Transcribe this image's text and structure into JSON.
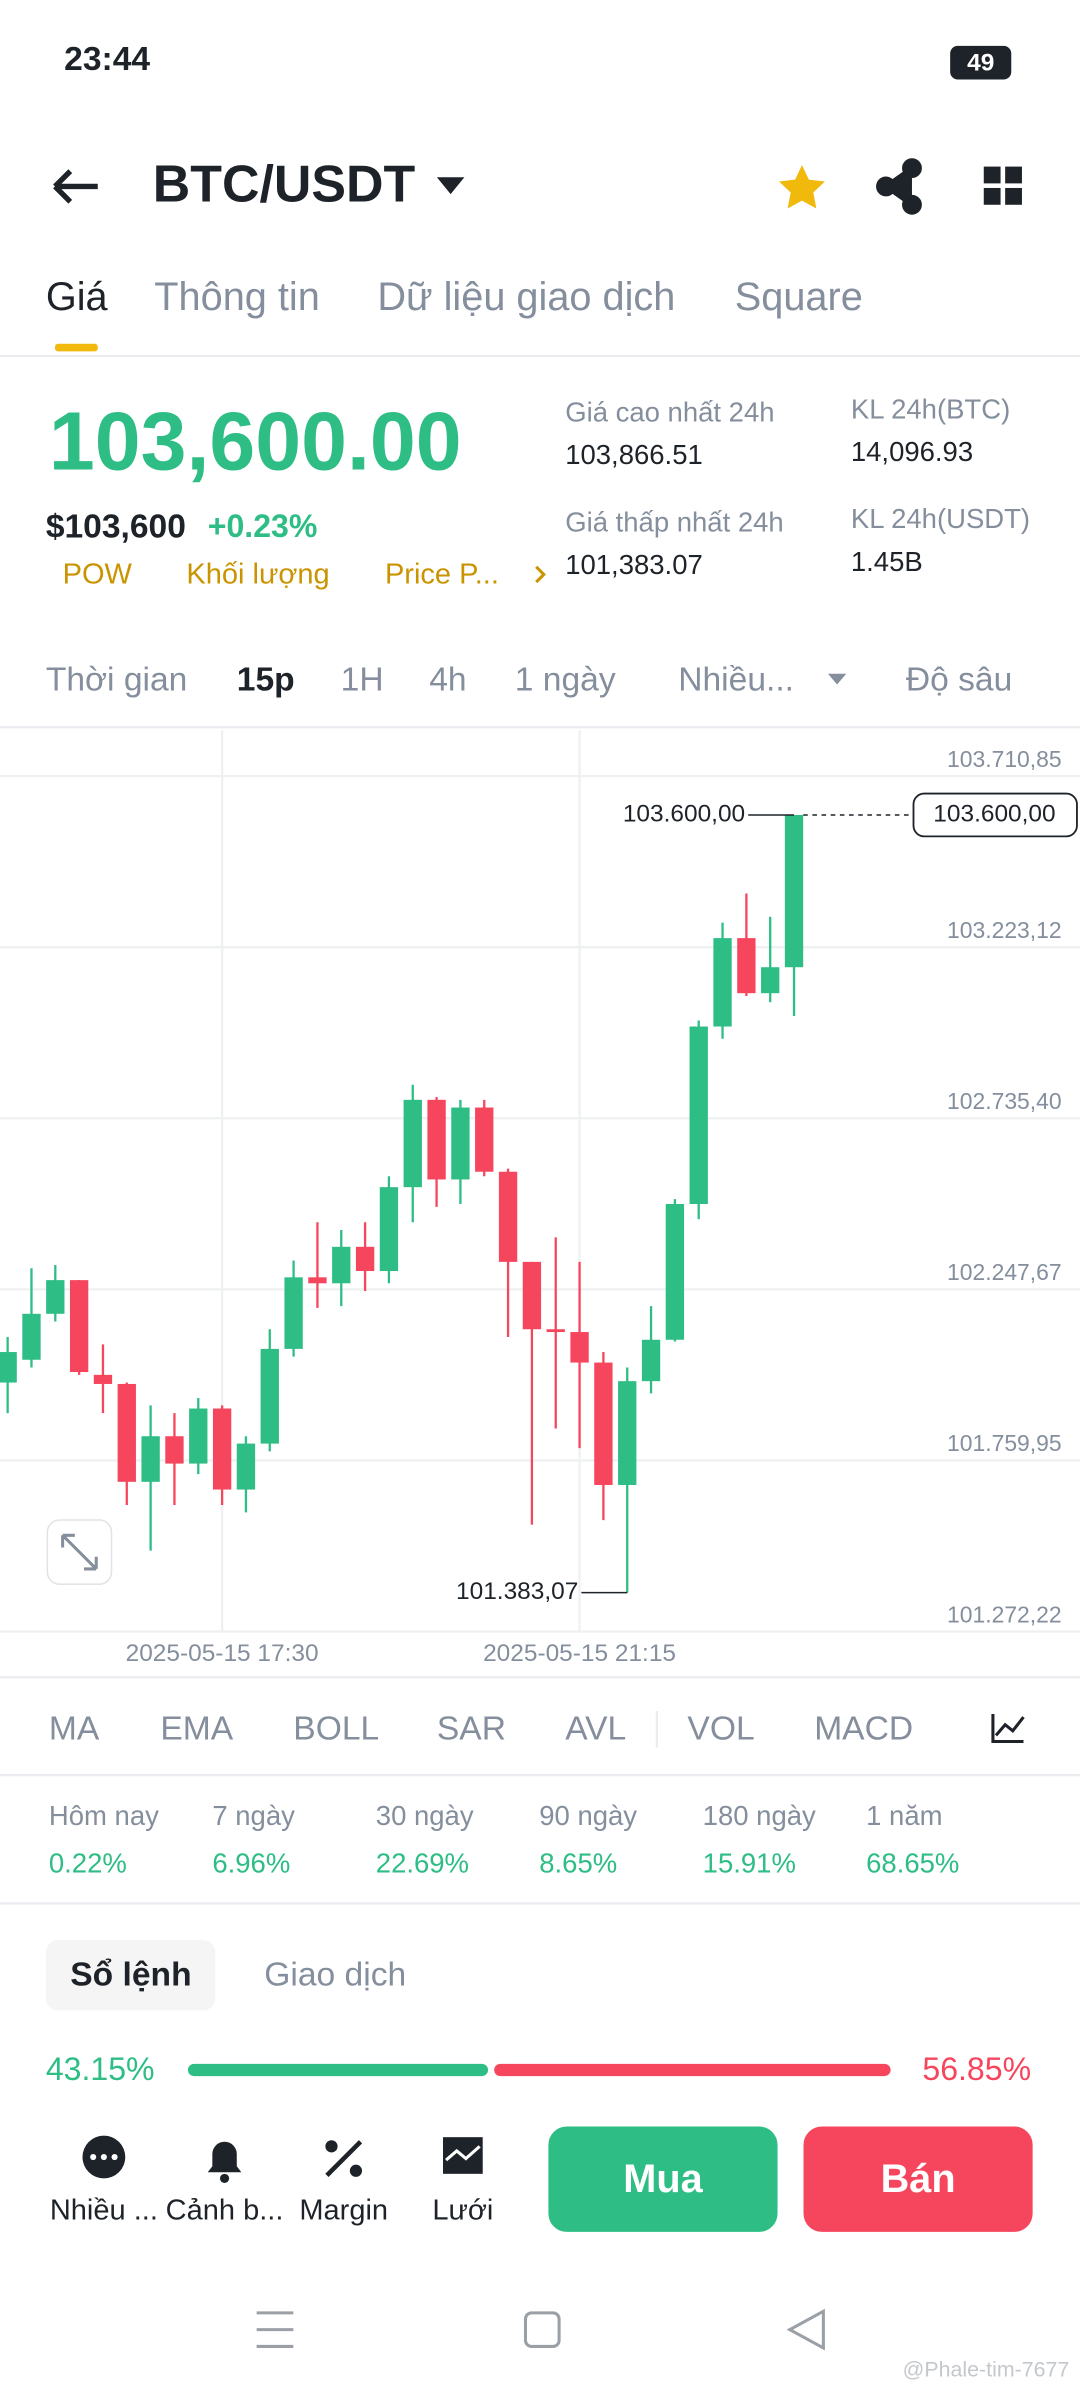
{
  "status_bar": {
    "time": "23:44",
    "battery": "49"
  },
  "header": {
    "pair": "BTC/USDT"
  },
  "tabs": [
    "Giá",
    "Thông tin",
    "Dữ liệu giao dịch",
    "Square"
  ],
  "price": {
    "last": "103,600.00",
    "usd": "$103,600",
    "change": "+0.23%",
    "tags": [
      "POW",
      "Khối lượng",
      "Price P..."
    ]
  },
  "stats": [
    {
      "label": "Giá cao nhất 24h",
      "value": "103,866.51"
    },
    {
      "label": "KL 24h(BTC)",
      "value": "14,096.93"
    },
    {
      "label": "Giá thấp nhất 24h",
      "value": "101,383.07"
    },
    {
      "label": "KL 24h(USDT)",
      "value": "1.45B"
    }
  ],
  "timeframes": [
    "Thời gian",
    "15p",
    "1H",
    "4h",
    "1 ngày",
    "Nhiều...",
    "Độ sâu"
  ],
  "chart_data": {
    "type": "candlestick",
    "up_color": "#2ebd85",
    "down_color": "#f6465d",
    "grid": true,
    "categories": [
      null,
      null,
      null,
      null,
      null,
      null,
      null,
      null,
      null,
      "2025-05-15 17:30",
      null,
      null,
      null,
      null,
      null,
      null,
      null,
      null,
      null,
      null,
      null,
      null,
      null,
      null,
      "2025-05-15 21:15",
      null,
      null,
      null,
      null,
      null,
      null,
      null,
      null,
      null
    ],
    "open": [
      101982,
      102047,
      102178,
      102274,
      102004,
      101978,
      101699,
      101829,
      101751,
      101908,
      101677,
      101808,
      102078,
      102282,
      102265,
      102369,
      102300,
      102539,
      102788,
      102561,
      102766,
      102583,
      102326,
      102134,
      102126,
      102039,
      101690,
      101986,
      102104,
      102491,
      102997,
      103249,
      103092,
      103166
    ],
    "high": [
      102112,
      102308,
      102317,
      102274,
      102091,
      101982,
      101917,
      101895,
      101938,
      101917,
      101829,
      102134,
      102330,
      102439,
      102417,
      102439,
      102570,
      102831,
      102796,
      102788,
      102788,
      102592,
      102326,
      102396,
      102326,
      102069,
      102025,
      102200,
      102505,
      103014,
      103293,
      103376,
      103310,
      103600
    ],
    "low": [
      101895,
      102025,
      102156,
      102004,
      101895,
      101633,
      101503,
      101633,
      101721,
      101633,
      101612,
      101786,
      102056,
      102195,
      102200,
      102243,
      102265,
      102439,
      102483,
      102491,
      102570,
      102112,
      101577,
      101851,
      101795,
      101590,
      101383.07,
      101951,
      102099,
      102448,
      102962,
      103084,
      103066,
      103027
    ],
    "close": [
      102069,
      102178,
      102274,
      102012,
      101978,
      101699,
      101829,
      101751,
      101908,
      101677,
      101808,
      102078,
      102282,
      102265,
      102369,
      102300,
      102539,
      102788,
      102561,
      102766,
      102583,
      102326,
      102134,
      102126,
      102039,
      101690,
      101986,
      102104,
      102491,
      102997,
      103249,
      103092,
      103166,
      103600
    ],
    "ylim": [
      101272.22,
      103841.49
    ],
    "yticks": [
      {
        "value": 101272.22,
        "label": "101.272,22"
      },
      {
        "value": 101759.95,
        "label": "101.759,95"
      },
      {
        "value": 102247.67,
        "label": "102.247,67"
      },
      {
        "value": 102735.4,
        "label": "102.735,40"
      },
      {
        "value": 103223.12,
        "label": "103.223,12"
      },
      {
        "value": 103710.85,
        "label": "103.710,85"
      }
    ],
    "current_price": {
      "value": 103600,
      "label": "103.600,00"
    },
    "annotations": [
      {
        "index": 33,
        "value": 103600,
        "label": "103.600,00"
      },
      {
        "index": 26,
        "value": 101383.07,
        "label": "101.383,07"
      }
    ]
  },
  "indicators": [
    "MA",
    "EMA",
    "BOLL",
    "SAR",
    "AVL",
    "VOL",
    "MACD"
  ],
  "performance": [
    {
      "label": "Hôm nay",
      "value": "0.22%"
    },
    {
      "label": "7 ngày",
      "value": "6.96%"
    },
    {
      "label": "30 ngày",
      "value": "22.69%"
    },
    {
      "label": "90 ngày",
      "value": "8.65%"
    },
    {
      "label": "180 ngày",
      "value": "15.91%"
    },
    {
      "label": "1 năm",
      "value": "68.65%"
    }
  ],
  "order_tabs": [
    "Sổ lệnh",
    "Giao dịch"
  ],
  "order_ratio": {
    "values": [
      43.15,
      56.85
    ],
    "value_labels": [
      "43.15%",
      "56.85%"
    ]
  },
  "bottom_actions": [
    "Nhiều ...",
    "Cảnh b...",
    "Margin",
    "Lưới"
  ],
  "buttons": {
    "buy": "Mua",
    "sell": "Bán"
  },
  "watermark": "@Phale-tim-7677"
}
